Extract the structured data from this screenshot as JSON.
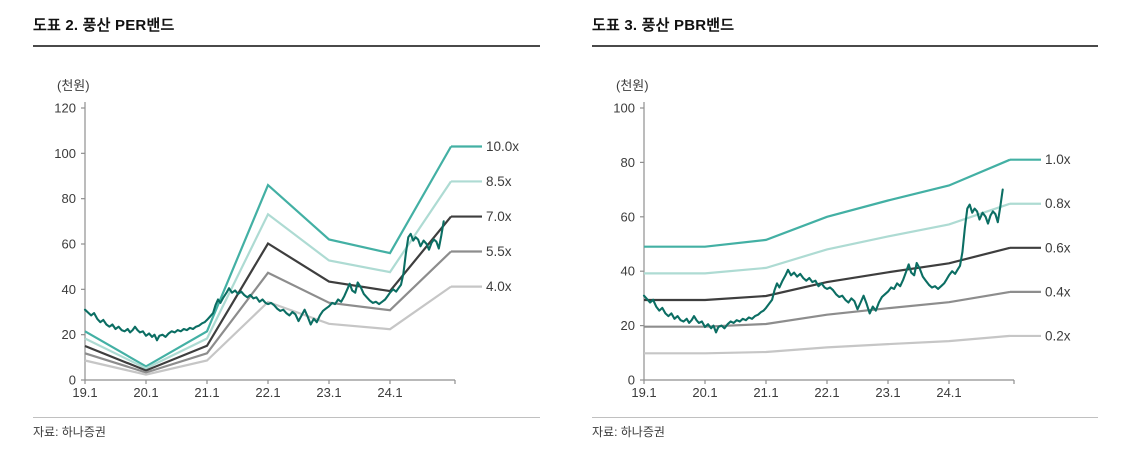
{
  "chart_data": [
    {
      "title": "도표 2. 풍산 PER밴드",
      "unit_label": "(천원)",
      "source": "자료: 하나증권",
      "type": "line",
      "grid": false,
      "legend_position": "right-edge-labels",
      "ylim": [
        0,
        120
      ],
      "y_ticks": [
        0,
        20,
        40,
        60,
        80,
        100,
        120
      ],
      "y_tick_labels": [
        "0",
        "20",
        "40",
        "60",
        "80",
        "100",
        "120"
      ],
      "x_tick_years": [
        19,
        20,
        21,
        22,
        23,
        24
      ],
      "x_tick_labels": [
        "19.1",
        "20.1",
        "21.1",
        "22.1",
        "23.1",
        "24.1"
      ],
      "band_years": [
        19,
        20,
        21,
        22,
        23,
        24,
        25
      ],
      "bands": [
        {
          "label": "10.0x",
          "color": "#43b0a4",
          "values": [
            21.5,
            6.0,
            21.5,
            86.0,
            62.0,
            56.0,
            103.0
          ]
        },
        {
          "label": "8.5x",
          "color": "#aedbd3",
          "values": [
            18.3,
            5.1,
            18.3,
            73.1,
            52.7,
            47.6,
            87.6
          ]
        },
        {
          "label": "7.0x",
          "color": "#3e3e3e",
          "values": [
            15.0,
            4.2,
            15.1,
            60.2,
            43.4,
            39.2,
            72.1
          ]
        },
        {
          "label": "5.5x",
          "color": "#8d8d8d",
          "values": [
            11.8,
            3.3,
            11.8,
            47.3,
            34.1,
            30.8,
            56.7
          ]
        },
        {
          "label": "4.0x",
          "color": "#c6c6c6",
          "values": [
            8.6,
            2.4,
            8.6,
            34.4,
            24.8,
            22.4,
            41.2
          ]
        }
      ],
      "price_line": {
        "color": "#0b6e63",
        "points": [
          [
            19.0,
            31
          ],
          [
            19.06,
            29.5
          ],
          [
            19.1,
            28.5
          ],
          [
            19.15,
            29.5
          ],
          [
            19.2,
            27
          ],
          [
            19.25,
            25.5
          ],
          [
            19.3,
            26.5
          ],
          [
            19.35,
            24.5
          ],
          [
            19.4,
            23.5
          ],
          [
            19.45,
            24.5
          ],
          [
            19.5,
            22.5
          ],
          [
            19.55,
            23.5
          ],
          [
            19.6,
            22
          ],
          [
            19.65,
            21.5
          ],
          [
            19.7,
            22.5
          ],
          [
            19.74,
            21
          ],
          [
            19.78,
            22
          ],
          [
            19.82,
            23.5
          ],
          [
            19.86,
            22
          ],
          [
            19.9,
            21
          ],
          [
            19.95,
            21.5
          ],
          [
            20.0,
            19.5
          ],
          [
            20.05,
            20.5
          ],
          [
            20.1,
            19
          ],
          [
            20.14,
            20
          ],
          [
            20.18,
            17.5
          ],
          [
            20.22,
            19.5
          ],
          [
            20.27,
            20
          ],
          [
            20.32,
            19
          ],
          [
            20.37,
            20.5
          ],
          [
            20.42,
            21.5
          ],
          [
            20.47,
            21
          ],
          [
            20.52,
            22
          ],
          [
            20.57,
            21.5
          ],
          [
            20.62,
            22.5
          ],
          [
            20.67,
            22
          ],
          [
            20.72,
            23
          ],
          [
            20.77,
            22.5
          ],
          [
            20.82,
            23.5
          ],
          [
            20.87,
            24
          ],
          [
            20.92,
            25
          ],
          [
            20.96,
            25.5
          ],
          [
            21.0,
            26.5
          ],
          [
            21.05,
            28
          ],
          [
            21.1,
            29.5
          ],
          [
            21.14,
            33
          ],
          [
            21.18,
            35.5
          ],
          [
            21.22,
            34
          ],
          [
            21.27,
            36.5
          ],
          [
            21.32,
            38.5
          ],
          [
            21.36,
            40.5
          ],
          [
            21.41,
            38.5
          ],
          [
            21.46,
            39.5
          ],
          [
            21.51,
            38
          ],
          [
            21.56,
            39
          ],
          [
            21.61,
            37.5
          ],
          [
            21.66,
            36.5
          ],
          [
            21.71,
            37.5
          ],
          [
            21.76,
            36
          ],
          [
            21.81,
            36.5
          ],
          [
            21.86,
            34.5
          ],
          [
            21.91,
            35.5
          ],
          [
            21.96,
            34
          ],
          [
            22.0,
            33.5
          ],
          [
            22.05,
            34
          ],
          [
            22.1,
            33
          ],
          [
            22.15,
            31.5
          ],
          [
            22.2,
            30.5
          ],
          [
            22.25,
            31
          ],
          [
            22.3,
            29.5
          ],
          [
            22.35,
            28.5
          ],
          [
            22.4,
            30
          ],
          [
            22.45,
            29
          ],
          [
            22.5,
            26
          ],
          [
            22.55,
            28.5
          ],
          [
            22.6,
            31
          ],
          [
            22.65,
            28
          ],
          [
            22.7,
            24.5
          ],
          [
            22.75,
            27
          ],
          [
            22.8,
            25.5
          ],
          [
            22.85,
            28.5
          ],
          [
            22.9,
            30.5
          ],
          [
            22.95,
            31.5
          ],
          [
            23.0,
            32.5
          ],
          [
            23.05,
            34
          ],
          [
            23.1,
            33.5
          ],
          [
            23.15,
            35.5
          ],
          [
            23.2,
            34.5
          ],
          [
            23.25,
            37
          ],
          [
            23.3,
            40
          ],
          [
            23.34,
            42.5
          ],
          [
            23.38,
            39.5
          ],
          [
            23.43,
            38.5
          ],
          [
            23.47,
            43
          ],
          [
            23.52,
            41
          ],
          [
            23.57,
            38
          ],
          [
            23.62,
            36.5
          ],
          [
            23.67,
            35
          ],
          [
            23.72,
            34
          ],
          [
            23.77,
            34.5
          ],
          [
            23.82,
            33.5
          ],
          [
            23.87,
            34.5
          ],
          [
            23.92,
            35.5
          ],
          [
            23.96,
            37
          ],
          [
            24.0,
            38.5
          ],
          [
            24.05,
            40
          ],
          [
            24.1,
            39
          ],
          [
            24.14,
            40.5
          ],
          [
            24.18,
            42
          ],
          [
            24.22,
            47
          ],
          [
            24.26,
            56
          ],
          [
            24.3,
            63
          ],
          [
            24.34,
            64.5
          ],
          [
            24.38,
            61.5
          ],
          [
            24.42,
            63
          ],
          [
            24.46,
            62
          ],
          [
            24.5,
            59
          ],
          [
            24.55,
            61.5
          ],
          [
            24.6,
            60
          ],
          [
            24.64,
            57.5
          ],
          [
            24.68,
            60.5
          ],
          [
            24.72,
            62
          ],
          [
            24.76,
            61
          ],
          [
            24.8,
            58
          ],
          [
            24.84,
            63.5
          ],
          [
            24.88,
            70
          ]
        ]
      }
    },
    {
      "title": "도표 3. 풍산 PBR밴드",
      "unit_label": "(천원)",
      "source": "자료: 하나증권",
      "type": "line",
      "grid": false,
      "legend_position": "right-edge-labels",
      "ylim": [
        0,
        100
      ],
      "y_ticks": [
        0,
        20,
        40,
        60,
        80,
        100
      ],
      "y_tick_labels": [
        "0",
        "20",
        "40",
        "60",
        "80",
        "100"
      ],
      "x_tick_years": [
        19,
        20,
        21,
        22,
        23,
        24
      ],
      "x_tick_labels": [
        "19.1",
        "20.1",
        "21.1",
        "22.1",
        "23.1",
        "24.1"
      ],
      "band_years": [
        19,
        20,
        21,
        22,
        23,
        24,
        25
      ],
      "bands": [
        {
          "label": "1.0x",
          "color": "#43b0a4",
          "values": [
            49.0,
            49.0,
            51.5,
            60.0,
            66.0,
            71.5,
            81.0
          ]
        },
        {
          "label": "0.8x",
          "color": "#aedbd3",
          "values": [
            39.2,
            39.2,
            41.2,
            48.0,
            52.8,
            57.2,
            64.8
          ]
        },
        {
          "label": "0.6x",
          "color": "#3e3e3e",
          "values": [
            29.4,
            29.4,
            30.9,
            36.0,
            39.6,
            42.9,
            48.6
          ]
        },
        {
          "label": "0.4x",
          "color": "#8d8d8d",
          "values": [
            19.6,
            19.6,
            20.6,
            24.0,
            26.4,
            28.6,
            32.4
          ]
        },
        {
          "label": "0.2x",
          "color": "#c6c6c6",
          "values": [
            9.8,
            9.8,
            10.3,
            12.0,
            13.2,
            14.3,
            16.2
          ]
        }
      ],
      "price_line": {
        "color": "#0b6e63",
        "points": [
          [
            19.0,
            31
          ],
          [
            19.06,
            29.5
          ],
          [
            19.1,
            28.5
          ],
          [
            19.15,
            29.5
          ],
          [
            19.2,
            27
          ],
          [
            19.25,
            25.5
          ],
          [
            19.3,
            26.5
          ],
          [
            19.35,
            24.5
          ],
          [
            19.4,
            23.5
          ],
          [
            19.45,
            24.5
          ],
          [
            19.5,
            22.5
          ],
          [
            19.55,
            23.5
          ],
          [
            19.6,
            22
          ],
          [
            19.65,
            21.5
          ],
          [
            19.7,
            22.5
          ],
          [
            19.74,
            21
          ],
          [
            19.78,
            22
          ],
          [
            19.82,
            23.5
          ],
          [
            19.86,
            22
          ],
          [
            19.9,
            21
          ],
          [
            19.95,
            21.5
          ],
          [
            20.0,
            19.5
          ],
          [
            20.05,
            20.5
          ],
          [
            20.1,
            19
          ],
          [
            20.14,
            20
          ],
          [
            20.18,
            17.5
          ],
          [
            20.22,
            19.5
          ],
          [
            20.27,
            20
          ],
          [
            20.32,
            19
          ],
          [
            20.37,
            20.5
          ],
          [
            20.42,
            21.5
          ],
          [
            20.47,
            21
          ],
          [
            20.52,
            22
          ],
          [
            20.57,
            21.5
          ],
          [
            20.62,
            22.5
          ],
          [
            20.67,
            22
          ],
          [
            20.72,
            23
          ],
          [
            20.77,
            22.5
          ],
          [
            20.82,
            23.5
          ],
          [
            20.87,
            24
          ],
          [
            20.92,
            25
          ],
          [
            20.96,
            25.5
          ],
          [
            21.0,
            26.5
          ],
          [
            21.05,
            28
          ],
          [
            21.1,
            29.5
          ],
          [
            21.14,
            33
          ],
          [
            21.18,
            35.5
          ],
          [
            21.22,
            34
          ],
          [
            21.27,
            36.5
          ],
          [
            21.32,
            38.5
          ],
          [
            21.36,
            40.5
          ],
          [
            21.41,
            38.5
          ],
          [
            21.46,
            39.5
          ],
          [
            21.51,
            38
          ],
          [
            21.56,
            39
          ],
          [
            21.61,
            37.5
          ],
          [
            21.66,
            36.5
          ],
          [
            21.71,
            37.5
          ],
          [
            21.76,
            36
          ],
          [
            21.81,
            36.5
          ],
          [
            21.86,
            34.5
          ],
          [
            21.91,
            35.5
          ],
          [
            21.96,
            34
          ],
          [
            22.0,
            33.5
          ],
          [
            22.05,
            34
          ],
          [
            22.1,
            33
          ],
          [
            22.15,
            31.5
          ],
          [
            22.2,
            30.5
          ],
          [
            22.25,
            31
          ],
          [
            22.3,
            29.5
          ],
          [
            22.35,
            28.5
          ],
          [
            22.4,
            30
          ],
          [
            22.45,
            29
          ],
          [
            22.5,
            26
          ],
          [
            22.55,
            28.5
          ],
          [
            22.6,
            31
          ],
          [
            22.65,
            28
          ],
          [
            22.7,
            24.5
          ],
          [
            22.75,
            27
          ],
          [
            22.8,
            25.5
          ],
          [
            22.85,
            28.5
          ],
          [
            22.9,
            30.5
          ],
          [
            22.95,
            31.5
          ],
          [
            23.0,
            32.5
          ],
          [
            23.05,
            34
          ],
          [
            23.1,
            33.5
          ],
          [
            23.15,
            35.5
          ],
          [
            23.2,
            34.5
          ],
          [
            23.25,
            37
          ],
          [
            23.3,
            40
          ],
          [
            23.34,
            42.5
          ],
          [
            23.38,
            39.5
          ],
          [
            23.43,
            38.5
          ],
          [
            23.47,
            43
          ],
          [
            23.52,
            41
          ],
          [
            23.57,
            38
          ],
          [
            23.62,
            36.5
          ],
          [
            23.67,
            35
          ],
          [
            23.72,
            34
          ],
          [
            23.77,
            34.5
          ],
          [
            23.82,
            33.5
          ],
          [
            23.87,
            34.5
          ],
          [
            23.92,
            35.5
          ],
          [
            23.96,
            37
          ],
          [
            24.0,
            38.5
          ],
          [
            24.05,
            40
          ],
          [
            24.1,
            39
          ],
          [
            24.14,
            40.5
          ],
          [
            24.18,
            42
          ],
          [
            24.22,
            47
          ],
          [
            24.26,
            56
          ],
          [
            24.3,
            63
          ],
          [
            24.34,
            64.5
          ],
          [
            24.38,
            61.5
          ],
          [
            24.42,
            63
          ],
          [
            24.46,
            62
          ],
          [
            24.5,
            59
          ],
          [
            24.55,
            61.5
          ],
          [
            24.6,
            60
          ],
          [
            24.64,
            57.5
          ],
          [
            24.68,
            60.5
          ],
          [
            24.72,
            62
          ],
          [
            24.76,
            61
          ],
          [
            24.8,
            58
          ],
          [
            24.84,
            63.5
          ],
          [
            24.88,
            70
          ]
        ]
      }
    }
  ]
}
